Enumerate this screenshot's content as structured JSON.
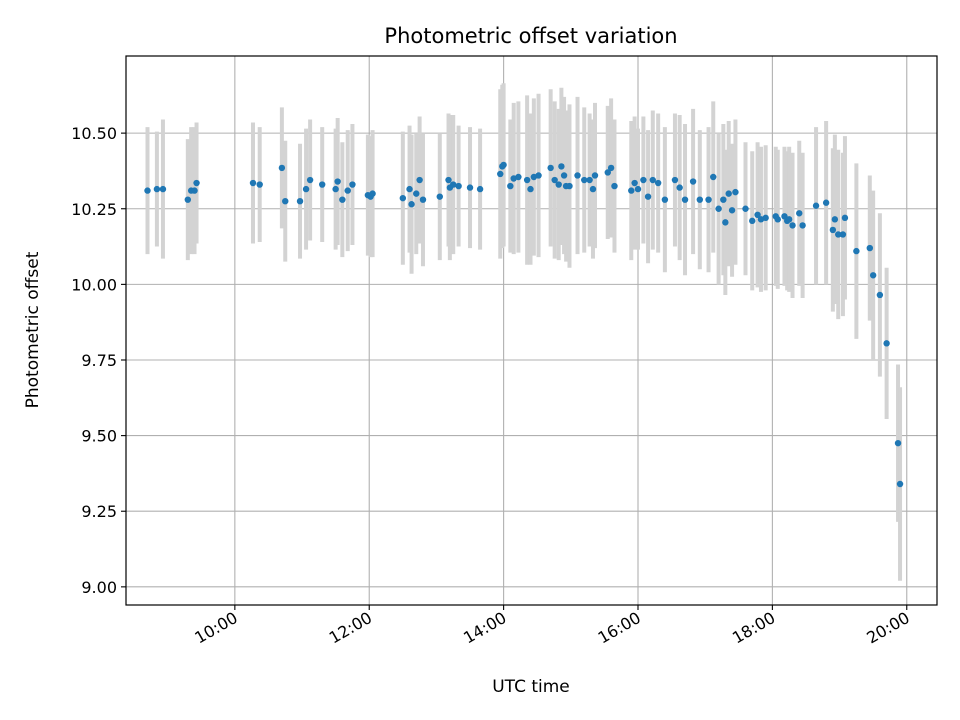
{
  "chart_data": {
    "type": "scatter",
    "title": "Photometric offset variation",
    "xlabel": "UTC time",
    "ylabel": "Photometric offset",
    "x_unit": "hours",
    "xlim": [
      8.38,
      20.45
    ],
    "ylim": [
      8.94,
      10.755
    ],
    "x_ticks": [
      {
        "value": 10,
        "label": "10:00"
      },
      {
        "value": 12,
        "label": "12:00"
      },
      {
        "value": 14,
        "label": "14:00"
      },
      {
        "value": 16,
        "label": "16:00"
      },
      {
        "value": 18,
        "label": "18:00"
      },
      {
        "value": 20,
        "label": "20:00"
      }
    ],
    "y_ticks": [
      {
        "value": 9.0,
        "label": "9.00"
      },
      {
        "value": 9.25,
        "label": "9.25"
      },
      {
        "value": 9.5,
        "label": "9.50"
      },
      {
        "value": 9.75,
        "label": "9.75"
      },
      {
        "value": 10.0,
        "label": "10.00"
      },
      {
        "value": 10.25,
        "label": "10.25"
      },
      {
        "value": 10.5,
        "label": "10.50"
      }
    ],
    "grid": true,
    "colors": {
      "marker": "#1f77b4",
      "errorbar": "#d3d3d3",
      "grid": "#b0b0b0"
    },
    "points": [
      [
        8.7,
        10.31,
        0.21
      ],
      [
        8.84,
        10.315,
        0.19
      ],
      [
        8.93,
        10.315,
        0.23
      ],
      [
        9.3,
        10.28,
        0.2
      ],
      [
        9.35,
        10.31,
        0.21
      ],
      [
        9.4,
        10.31,
        0.21
      ],
      [
        9.43,
        10.335,
        0.2
      ],
      [
        10.27,
        10.335,
        0.2
      ],
      [
        10.37,
        10.33,
        0.19
      ],
      [
        10.7,
        10.385,
        0.2
      ],
      [
        10.75,
        10.275,
        0.2
      ],
      [
        10.97,
        10.275,
        0.19
      ],
      [
        11.06,
        10.315,
        0.2
      ],
      [
        11.12,
        10.345,
        0.2
      ],
      [
        11.3,
        10.33,
        0.19
      ],
      [
        11.5,
        10.315,
        0.2
      ],
      [
        11.53,
        10.34,
        0.21
      ],
      [
        11.6,
        10.28,
        0.19
      ],
      [
        11.68,
        10.31,
        0.2
      ],
      [
        11.75,
        10.33,
        0.2
      ],
      [
        11.98,
        10.295,
        0.2
      ],
      [
        12.02,
        10.29,
        0.2
      ],
      [
        12.05,
        10.3,
        0.21
      ],
      [
        12.5,
        10.285,
        0.22
      ],
      [
        12.6,
        10.315,
        0.21
      ],
      [
        12.63,
        10.265,
        0.23
      ],
      [
        12.7,
        10.3,
        0.2
      ],
      [
        12.75,
        10.345,
        0.21
      ],
      [
        12.8,
        10.28,
        0.22
      ],
      [
        13.05,
        10.29,
        0.21
      ],
      [
        13.18,
        10.345,
        0.22
      ],
      [
        13.2,
        10.32,
        0.24
      ],
      [
        13.25,
        10.33,
        0.23
      ],
      [
        13.33,
        10.325,
        0.2
      ],
      [
        13.5,
        10.32,
        0.2
      ],
      [
        13.65,
        10.315,
        0.2
      ],
      [
        13.95,
        10.365,
        0.28
      ],
      [
        13.98,
        10.39,
        0.27
      ],
      [
        14.0,
        10.395,
        0.27
      ],
      [
        14.1,
        10.325,
        0.22
      ],
      [
        14.15,
        10.35,
        0.25
      ],
      [
        14.22,
        10.355,
        0.25
      ],
      [
        14.35,
        10.345,
        0.28
      ],
      [
        14.4,
        10.315,
        0.25
      ],
      [
        14.45,
        10.355,
        0.26
      ],
      [
        14.52,
        10.36,
        0.27
      ],
      [
        14.7,
        10.385,
        0.26
      ],
      [
        14.76,
        10.345,
        0.26
      ],
      [
        14.82,
        10.33,
        0.25
      ],
      [
        14.86,
        10.39,
        0.26
      ],
      [
        14.9,
        10.36,
        0.26
      ],
      [
        14.93,
        10.325,
        0.25
      ],
      [
        14.98,
        10.325,
        0.27
      ],
      [
        15.1,
        10.36,
        0.26
      ],
      [
        15.2,
        10.345,
        0.24
      ],
      [
        15.28,
        10.345,
        0.22
      ],
      [
        15.33,
        10.315,
        0.23
      ],
      [
        15.36,
        10.36,
        0.24
      ],
      [
        15.55,
        10.37,
        0.22
      ],
      [
        15.6,
        10.385,
        0.23
      ],
      [
        15.65,
        10.325,
        0.22
      ],
      [
        15.9,
        10.31,
        0.23
      ],
      [
        15.95,
        10.335,
        0.22
      ],
      [
        16.0,
        10.315,
        0.2
      ],
      [
        16.08,
        10.345,
        0.21
      ],
      [
        16.15,
        10.29,
        0.22
      ],
      [
        16.22,
        10.345,
        0.23
      ],
      [
        16.3,
        10.335,
        0.23
      ],
      [
        16.4,
        10.28,
        0.24
      ],
      [
        16.55,
        10.345,
        0.22
      ],
      [
        16.62,
        10.32,
        0.24
      ],
      [
        16.7,
        10.28,
        0.25
      ],
      [
        16.82,
        10.34,
        0.24
      ],
      [
        16.92,
        10.28,
        0.23
      ],
      [
        17.05,
        10.28,
        0.24
      ],
      [
        17.12,
        10.355,
        0.25
      ],
      [
        17.2,
        10.25,
        0.25
      ],
      [
        17.27,
        10.28,
        0.25
      ],
      [
        17.3,
        10.205,
        0.24
      ],
      [
        17.35,
        10.3,
        0.24
      ],
      [
        17.4,
        10.245,
        0.22
      ],
      [
        17.45,
        10.305,
        0.24
      ],
      [
        17.6,
        10.25,
        0.22
      ],
      [
        17.7,
        10.21,
        0.23
      ],
      [
        17.78,
        10.23,
        0.24
      ],
      [
        17.83,
        10.215,
        0.24
      ],
      [
        17.9,
        10.22,
        0.24
      ],
      [
        18.05,
        10.225,
        0.23
      ],
      [
        18.08,
        10.215,
        0.23
      ],
      [
        18.18,
        10.225,
        0.23
      ],
      [
        18.22,
        10.21,
        0.23
      ],
      [
        18.25,
        10.215,
        0.24
      ],
      [
        18.3,
        10.195,
        0.24
      ],
      [
        18.4,
        10.235,
        0.24
      ],
      [
        18.45,
        10.195,
        0.24
      ],
      [
        18.65,
        10.26,
        0.26
      ],
      [
        18.8,
        10.27,
        0.27
      ],
      [
        18.9,
        10.18,
        0.27
      ],
      [
        18.93,
        10.215,
        0.28
      ],
      [
        18.98,
        10.165,
        0.28
      ],
      [
        19.05,
        10.165,
        0.27
      ],
      [
        19.08,
        10.22,
        0.27
      ],
      [
        19.25,
        10.11,
        0.29
      ],
      [
        19.45,
        10.12,
        0.24
      ],
      [
        19.5,
        10.03,
        0.28
      ],
      [
        19.6,
        9.965,
        0.27
      ],
      [
        19.7,
        9.805,
        0.25
      ],
      [
        19.87,
        9.475,
        0.26
      ],
      [
        19.9,
        9.34,
        0.32
      ]
    ]
  }
}
